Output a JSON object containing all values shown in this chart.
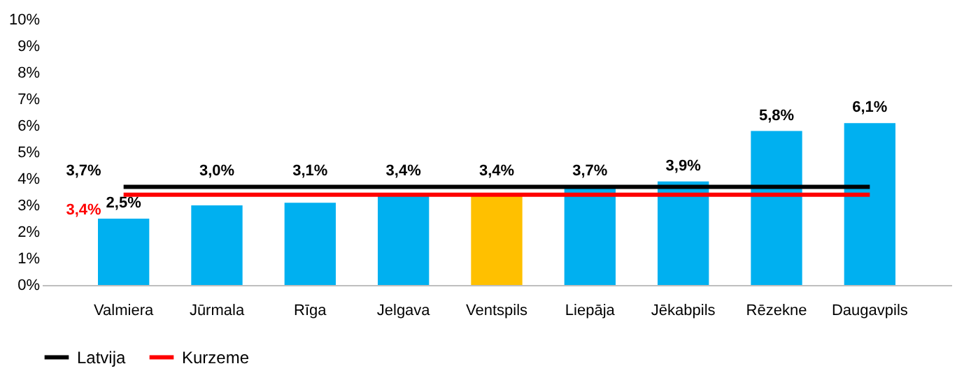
{
  "chart_data": {
    "type": "bar",
    "categories": [
      "Valmiera",
      "Jūrmala",
      "Rīga",
      "Jelgava",
      "Ventspils",
      "Liepāja",
      "Jēkabpils",
      "Rēzekne",
      "Daugavpils"
    ],
    "values": [
      2.5,
      3.0,
      3.1,
      3.4,
      3.4,
      3.7,
      3.9,
      5.8,
      6.1
    ],
    "colors": [
      "#00b0f0",
      "#00b0f0",
      "#00b0f0",
      "#00b0f0",
      "#ffc000",
      "#00b0f0",
      "#00b0f0",
      "#00b0f0",
      "#00b0f0"
    ],
    "value_labels": [
      "2,5%",
      "3,0%",
      "3,1%",
      "3,4%",
      "3,4%",
      "3,7%",
      "3,9%",
      "5,8%",
      "6,1%"
    ],
    "series": [
      {
        "name": "Latvija",
        "type": "line",
        "color": "#000000",
        "values": [
          3.7,
          3.7,
          3.7,
          3.7,
          3.7,
          3.7,
          3.7,
          3.7,
          3.7
        ],
        "value_labels": [
          "3,7%",
          null,
          null,
          null,
          null,
          null,
          null,
          null,
          null
        ]
      },
      {
        "name": "Kurzeme",
        "type": "line",
        "color": "#ff0000",
        "values": [
          3.4,
          3.4,
          3.4,
          3.4,
          3.4,
          3.4,
          3.4,
          3.4,
          3.4
        ],
        "value_labels": [
          "3,4%",
          null,
          null,
          null,
          null,
          null,
          null,
          null,
          null
        ]
      }
    ],
    "ylim": [
      0,
      10
    ],
    "yticks": [
      {
        "value": 0,
        "label": "0%"
      },
      {
        "value": 1,
        "label": "1%"
      },
      {
        "value": 2,
        "label": "2%"
      },
      {
        "value": 3,
        "label": "3%"
      },
      {
        "value": 4,
        "label": "4%"
      },
      {
        "value": 5,
        "label": "5%"
      },
      {
        "value": 6,
        "label": "6%"
      },
      {
        "value": 7,
        "label": "7%"
      },
      {
        "value": 8,
        "label": "8%"
      },
      {
        "value": 9,
        "label": "9%"
      },
      {
        "value": 10,
        "label": "10%"
      }
    ],
    "grid": false,
    "legend": "bottom"
  }
}
